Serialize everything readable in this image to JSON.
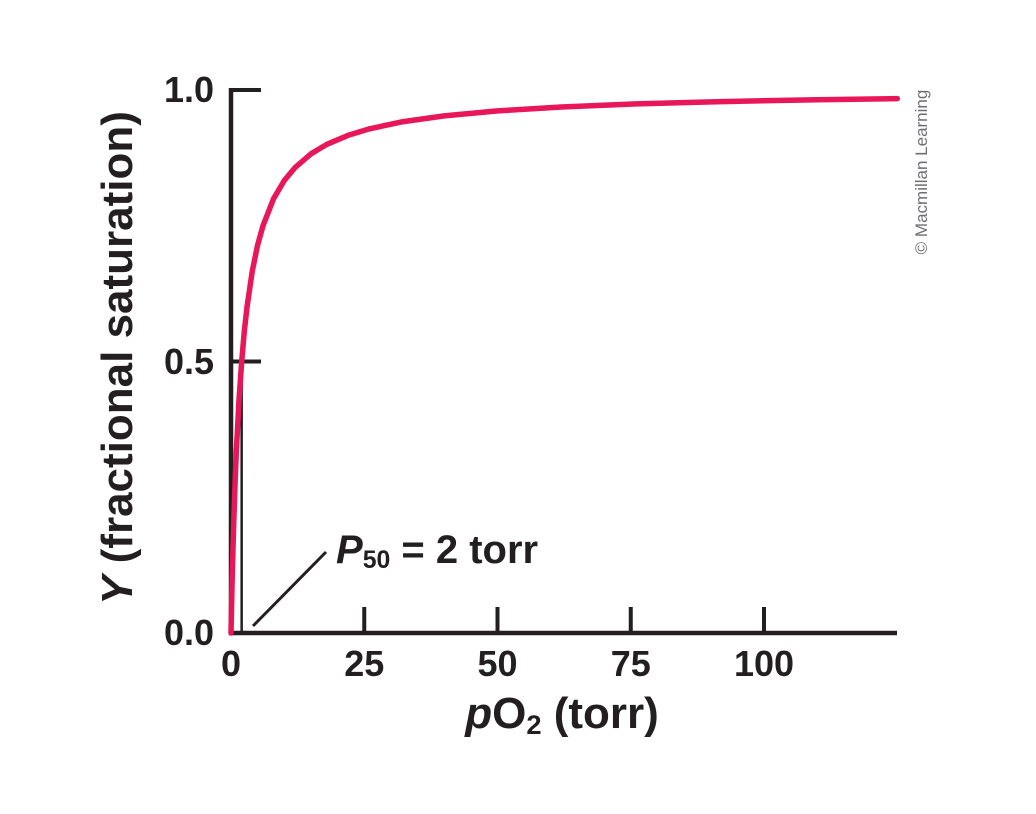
{
  "page": {
    "background": "#ffffff"
  },
  "credit": "© Macmillan Learning",
  "labels": {
    "y_axis_title": {
      "italic": "Y",
      "rest": " (fractional saturation)"
    },
    "x_axis_title": {
      "italic": "p",
      "base": "O",
      "sub": "2",
      "rest": " (torr)"
    },
    "p50": {
      "italic": "P",
      "sub": "50",
      "rest": " = 2 torr"
    }
  },
  "chart_data": {
    "type": "line",
    "title": "",
    "xlabel": "pO2 (torr)",
    "ylabel": "Y (fractional saturation)",
    "x_axis": {
      "range": [
        0,
        125
      ],
      "ticks": [
        0,
        25,
        50,
        75,
        100
      ],
      "tick_labels": [
        "0",
        "25",
        "50",
        "75",
        "100"
      ]
    },
    "y_axis": {
      "range": [
        0,
        1.0
      ],
      "ticks": [
        0,
        0.5,
        1.0
      ],
      "tick_labels": [
        "0.0",
        "0.5",
        "1.0"
      ]
    },
    "grid": false,
    "legend": false,
    "axis_color": "#231f20",
    "credit_color": "#6d6e71",
    "annotation": {
      "text": "P50 = 2 torr",
      "p50_torr": 2
    },
    "curve": {
      "name": "oxygen-binding-curve",
      "color": "#e8175a",
      "p50_torr": 2,
      "points": [
        {
          "pO2": 0,
          "Y": 0.0
        },
        {
          "pO2": 1,
          "Y": 0.33
        },
        {
          "pO2": 2,
          "Y": 0.5
        },
        {
          "pO2": 5,
          "Y": 0.71
        },
        {
          "pO2": 10,
          "Y": 0.83
        },
        {
          "pO2": 25,
          "Y": 0.93
        },
        {
          "pO2": 50,
          "Y": 0.96
        },
        {
          "pO2": 75,
          "Y": 0.97
        },
        {
          "pO2": 100,
          "Y": 0.98
        },
        {
          "pO2": 125,
          "Y": 0.99
        }
      ]
    }
  }
}
